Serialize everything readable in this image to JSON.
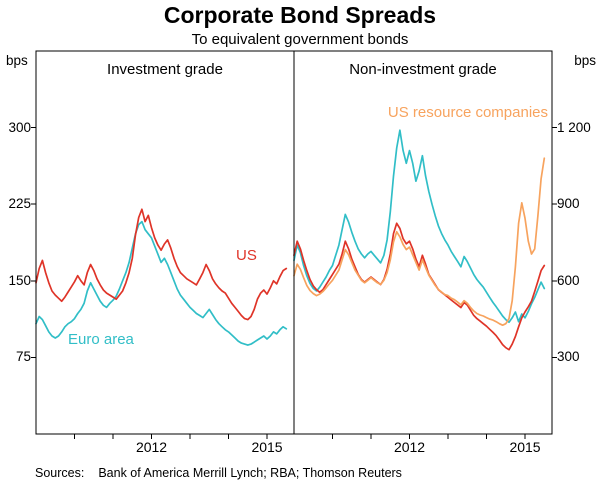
{
  "title": "Corporate Bond Spreads",
  "subtitle": "To equivalent government bonds",
  "axis_units": {
    "left": "bps",
    "right": "bps"
  },
  "sources": {
    "label": "Sources:",
    "text": "Bank of America Merrill Lynch; RBA; Thomson Reuters"
  },
  "colors": {
    "us": "#df3428",
    "euro_area": "#31bec7",
    "us_resource": "#f7a35e",
    "frame": "#000000"
  },
  "chart_data": [
    {
      "type": "line",
      "panel": "Investment grade",
      "x_start": 2009.0,
      "x_step_years": 0.0833333,
      "xlim": [
        2009,
        2015.7
      ],
      "ylim": [
        0,
        375
      ],
      "ytick_side": "left",
      "yticks": [
        75,
        150,
        225,
        300
      ],
      "ytick_labels": [
        "75",
        "150",
        "225",
        "300"
      ],
      "xticks": [
        2012,
        2015
      ],
      "xtick_labels": [
        "2012",
        "2015"
      ],
      "year_ticks": [
        2010,
        2011,
        2012,
        2013,
        2014,
        2015
      ],
      "series": [
        {
          "name": "Euro area",
          "color": "#31bec7",
          "values": [
            108,
            115,
            112,
            106,
            100,
            96,
            94,
            96,
            100,
            105,
            108,
            110,
            113,
            118,
            122,
            128,
            140,
            148,
            142,
            136,
            130,
            126,
            124,
            128,
            131,
            135,
            142,
            150,
            158,
            168,
            182,
            196,
            205,
            208,
            200,
            196,
            192,
            184,
            176,
            168,
            172,
            166,
            158,
            150,
            142,
            136,
            132,
            128,
            124,
            121,
            118,
            116,
            114,
            118,
            122,
            117,
            112,
            108,
            105,
            102,
            100,
            97,
            94,
            91,
            89,
            88,
            87,
            88,
            90,
            92,
            94,
            96,
            93,
            96,
            100,
            98,
            102,
            105,
            103
          ]
        },
        {
          "name": "US",
          "color": "#df3428",
          "values": [
            148,
            162,
            170,
            158,
            148,
            140,
            136,
            133,
            130,
            134,
            139,
            144,
            149,
            155,
            150,
            146,
            158,
            166,
            160,
            152,
            146,
            141,
            138,
            136,
            134,
            132,
            136,
            140,
            148,
            158,
            172,
            195,
            212,
            220,
            208,
            214,
            202,
            192,
            185,
            180,
            186,
            190,
            182,
            172,
            164,
            158,
            155,
            152,
            150,
            148,
            146,
            152,
            158,
            166,
            160,
            152,
            147,
            143,
            140,
            138,
            133,
            128,
            124,
            120,
            116,
            113,
            112,
            115,
            122,
            132,
            138,
            141,
            137,
            143,
            150,
            147,
            154,
            160,
            162
          ]
        }
      ]
    },
    {
      "type": "line",
      "panel": "Non-investment grade",
      "x_start": 2009.0,
      "x_step_years": 0.0833333,
      "xlim": [
        2009,
        2015.7
      ],
      "ylim": [
        0,
        1500
      ],
      "ytick_side": "right",
      "yticks": [
        300,
        600,
        900,
        1200
      ],
      "ytick_labels": [
        "300",
        "600",
        "900",
        "1 200"
      ],
      "xticks": [
        2012,
        2015
      ],
      "xtick_labels": [
        "2012",
        "2015"
      ],
      "year_ticks": [
        2010,
        2011,
        2012,
        2013,
        2014,
        2015
      ],
      "series": [
        {
          "name": "Euro area",
          "color": "#31bec7",
          "values": [
            680,
            740,
            710,
            660,
            620,
            590,
            570,
            560,
            575,
            595,
            615,
            640,
            660,
            700,
            740,
            800,
            860,
            830,
            790,
            755,
            725,
            705,
            690,
            705,
            715,
            700,
            685,
            670,
            700,
            760,
            870,
            1010,
            1120,
            1190,
            1110,
            1060,
            1110,
            1060,
            990,
            1030,
            1090,
            1010,
            950,
            900,
            855,
            815,
            785,
            760,
            740,
            715,
            695,
            675,
            655,
            695,
            675,
            650,
            625,
            605,
            590,
            575,
            555,
            535,
            515,
            498,
            480,
            462,
            448,
            438,
            455,
            478,
            440,
            470,
            455,
            480,
            510,
            535,
            565,
            595,
            570
          ]
        },
        {
          "name": "US",
          "color": "#df3428",
          "values": [
            700,
            755,
            725,
            680,
            640,
            605,
            580,
            565,
            555,
            565,
            585,
            605,
            625,
            645,
            665,
            705,
            755,
            725,
            685,
            655,
            625,
            605,
            595,
            605,
            615,
            605,
            595,
            585,
            605,
            645,
            705,
            785,
            825,
            805,
            765,
            745,
            755,
            725,
            685,
            655,
            700,
            665,
            625,
            605,
            585,
            565,
            555,
            545,
            535,
            525,
            515,
            505,
            495,
            515,
            505,
            485,
            465,
            452,
            442,
            432,
            422,
            410,
            398,
            385,
            368,
            350,
            338,
            330,
            352,
            382,
            420,
            455,
            478,
            498,
            520,
            558,
            598,
            640,
            660
          ]
        },
        {
          "name": "US resource companies",
          "color": "#f7a35e",
          "values": [
            620,
            665,
            645,
            612,
            582,
            562,
            550,
            542,
            548,
            558,
            572,
            588,
            602,
            622,
            642,
            682,
            722,
            702,
            672,
            642,
            622,
            602,
            592,
            602,
            612,
            602,
            592,
            586,
            602,
            632,
            682,
            752,
            792,
            772,
            742,
            722,
            732,
            702,
            672,
            642,
            682,
            652,
            622,
            602,
            582,
            566,
            556,
            546,
            542,
            532,
            526,
            516,
            506,
            522,
            512,
            496,
            482,
            472,
            466,
            462,
            456,
            450,
            446,
            440,
            432,
            426,
            432,
            452,
            522,
            655,
            825,
            905,
            845,
            755,
            705,
            725,
            855,
            1000,
            1080
          ]
        }
      ]
    }
  ]
}
